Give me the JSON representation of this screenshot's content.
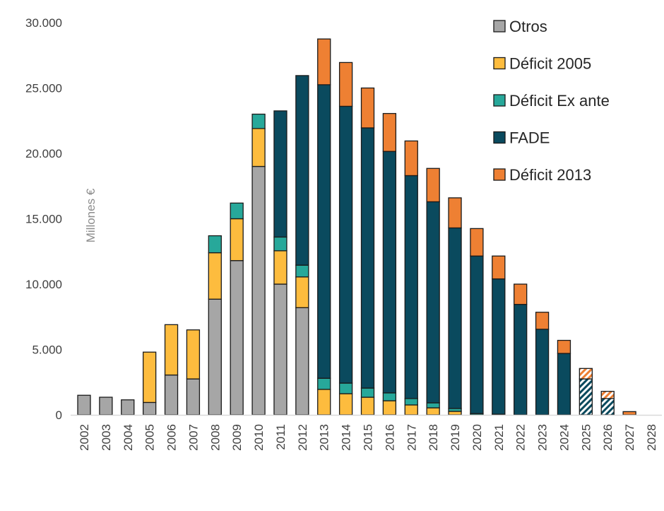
{
  "chart_data": {
    "type": "bar",
    "stacked": true,
    "title": "",
    "xlabel": "",
    "ylabel": "Millones €",
    "ylim": [
      0,
      30000
    ],
    "yticks": [
      "0",
      "5.000",
      "10.000",
      "15.000",
      "20.000",
      "25.000",
      "30.000"
    ],
    "ytick_values": [
      0,
      5000,
      10000,
      15000,
      20000,
      25000,
      30000
    ],
    "grid": false,
    "legend_position": "top-right",
    "categories": [
      "2002",
      "2003",
      "2004",
      "2005",
      "2006",
      "2007",
      "2008",
      "2009",
      "2010",
      "2011",
      "2012",
      "2013",
      "2014",
      "2015",
      "2016",
      "2017",
      "2018",
      "2019",
      "2020",
      "2021",
      "2022",
      "2023",
      "2024",
      "2025",
      "2026",
      "2027",
      "2028"
    ],
    "hatched_categories": [
      "2025",
      "2026"
    ],
    "series": [
      {
        "name": "Otros",
        "color": "#a6a6a6",
        "values": [
          1500,
          1350,
          1150,
          950,
          3050,
          2750,
          8850,
          11800,
          19000,
          10000,
          8200,
          0,
          0,
          0,
          0,
          0,
          0,
          0,
          0,
          0,
          0,
          0,
          0,
          0,
          0,
          0,
          0
        ]
      },
      {
        "name": "Déficit 2005",
        "color": "#fdbc3e",
        "values": [
          0,
          0,
          0,
          3850,
          3850,
          3750,
          3550,
          3200,
          2900,
          2550,
          2350,
          1950,
          1620,
          1350,
          1080,
          760,
          540,
          270,
          0,
          0,
          0,
          0,
          0,
          0,
          0,
          0,
          0
        ]
      },
      {
        "name": "Déficit Ex ante",
        "color": "#27a89a",
        "values": [
          0,
          0,
          0,
          0,
          0,
          0,
          1300,
          1200,
          1100,
          1050,
          900,
          850,
          810,
          700,
          600,
          490,
          380,
          220,
          100,
          50,
          0,
          0,
          0,
          0,
          0,
          0,
          0
        ]
      },
      {
        "name": "FADE",
        "color": "#0a4a5e",
        "values": [
          0,
          0,
          0,
          0,
          0,
          0,
          0,
          0,
          0,
          9650,
          14500,
          22450,
          21170,
          19900,
          18470,
          17050,
          15380,
          13810,
          12050,
          10350,
          8450,
          6550,
          4700,
          2750,
          1250,
          0,
          0
        ]
      },
      {
        "name": "Déficit 2013",
        "color": "#ee8033",
        "values": [
          0,
          0,
          0,
          0,
          0,
          0,
          0,
          0,
          0,
          0,
          0,
          3500,
          3350,
          3050,
          2900,
          2650,
          2550,
          2300,
          2100,
          1750,
          1550,
          1300,
          1000,
          800,
          550,
          250,
          0
        ]
      }
    ]
  }
}
